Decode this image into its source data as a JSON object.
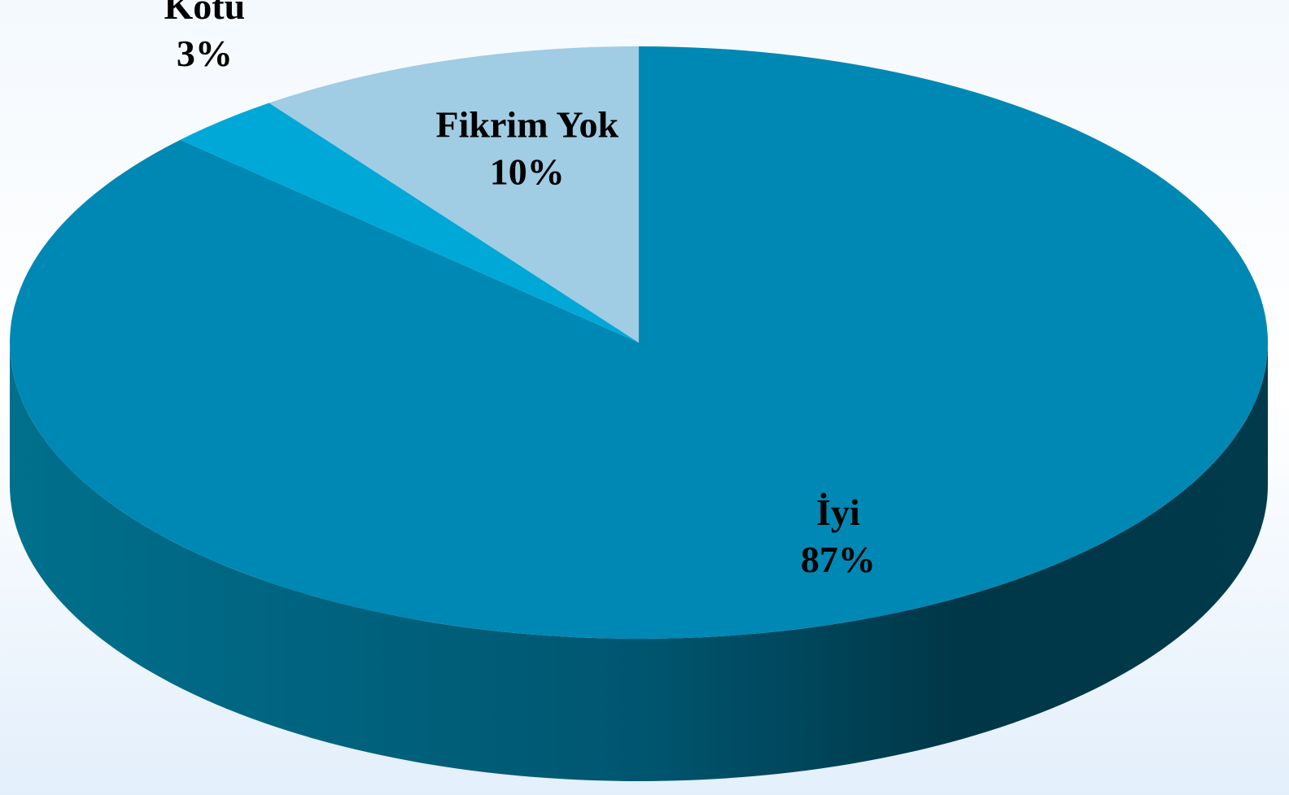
{
  "chart_data": {
    "type": "pie",
    "categories": [
      "İyi",
      "Kötü",
      "Fikrim Yok"
    ],
    "values": [
      87,
      3,
      10
    ],
    "value_labels": [
      "87%",
      "3%",
      "10%"
    ],
    "colors": [
      "#0088b4",
      "#00a8d8",
      "#a0cce4"
    ]
  }
}
